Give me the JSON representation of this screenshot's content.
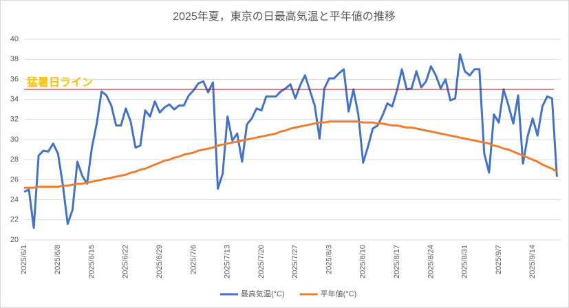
{
  "chart_data": {
    "type": "line",
    "title": "2025年夏，東京の日最高気温と平年値の推移",
    "categories": [
      "2025/6/1",
      null,
      null,
      null,
      null,
      null,
      null,
      "2025/6/8",
      null,
      null,
      null,
      null,
      null,
      null,
      "2025/6/15",
      null,
      null,
      null,
      null,
      null,
      null,
      "2025/6/22",
      null,
      null,
      null,
      null,
      null,
      null,
      "2025/6/29",
      null,
      null,
      null,
      null,
      null,
      null,
      "2025/7/6",
      null,
      null,
      null,
      null,
      null,
      null,
      "2025/7/13",
      null,
      null,
      null,
      null,
      null,
      null,
      "2025/7/20",
      null,
      null,
      null,
      null,
      null,
      null,
      "2025/7/27",
      null,
      null,
      null,
      null,
      null,
      null,
      "2025/8/3",
      null,
      null,
      null,
      null,
      null,
      null,
      "2025/8/10",
      null,
      null,
      null,
      null,
      null,
      null,
      "2025/8/17",
      null,
      null,
      null,
      null,
      null,
      null,
      "2025/8/24",
      null,
      null,
      null,
      null,
      null,
      null,
      "2025/8/31",
      null,
      null,
      null,
      null,
      null,
      null,
      "2025/9/7",
      null,
      null,
      null,
      null,
      null,
      null,
      "2025/9/14",
      null,
      null,
      null,
      null,
      null
    ],
    "series": [
      {
        "name": "最高気温(°C)",
        "color": "#4472c4",
        "values": [
          24.8,
          25.0,
          21.2,
          28.4,
          28.9,
          28.8,
          29.6,
          28.6,
          25.5,
          21.6,
          23.0,
          27.8,
          26.4,
          25.6,
          29.2,
          31.6,
          34.8,
          34.4,
          33.4,
          31.4,
          31.4,
          33.1,
          31.8,
          29.2,
          29.4,
          32.9,
          32.3,
          33.8,
          32.7,
          33.2,
          33.5,
          33.0,
          33.4,
          33.4,
          34.4,
          34.9,
          35.6,
          35.8,
          34.7,
          35.7,
          25.1,
          26.6,
          32.3,
          29.9,
          30.6,
          27.8,
          31.5,
          32.1,
          33.1,
          32.9,
          34.3,
          34.3,
          34.3,
          34.8,
          35.1,
          35.5,
          34.1,
          35.4,
          36.4,
          34.9,
          33.4,
          30.1,
          35.1,
          36.1,
          36.1,
          36.6,
          37.0,
          32.8,
          35.0,
          32.5,
          27.7,
          29.3,
          31.1,
          31.4,
          32.4,
          33.6,
          33.3,
          34.9,
          37.0,
          35.0,
          35.1,
          36.8,
          35.2,
          35.8,
          37.3,
          36.4,
          35.1,
          36.0,
          33.9,
          34.1,
          38.5,
          36.8,
          36.4,
          37.0,
          37.0,
          28.6,
          26.7,
          32.5,
          31.7,
          35.0,
          33.4,
          31.6,
          34.4,
          27.6,
          30.4,
          32.1,
          30.4,
          33.3,
          34.3,
          34.1,
          26.3
        ]
      },
      {
        "name": "平年値(°C)",
        "color": "#ed7d31",
        "values": [
          25.2,
          25.2,
          25.2,
          25.3,
          25.3,
          25.3,
          25.3,
          25.3,
          25.4,
          25.4,
          25.5,
          25.6,
          25.6,
          25.7,
          25.8,
          25.9,
          26.0,
          26.1,
          26.2,
          26.3,
          26.4,
          26.5,
          26.7,
          26.8,
          27.0,
          27.1,
          27.3,
          27.5,
          27.7,
          27.9,
          28.0,
          28.2,
          28.3,
          28.5,
          28.6,
          28.7,
          28.9,
          29.0,
          29.1,
          29.2,
          29.4,
          29.5,
          29.6,
          29.7,
          29.8,
          29.9,
          30.0,
          30.1,
          30.2,
          30.3,
          30.4,
          30.5,
          30.6,
          30.8,
          30.9,
          31.1,
          31.2,
          31.3,
          31.4,
          31.5,
          31.6,
          31.7,
          31.7,
          31.8,
          31.8,
          31.8,
          31.8,
          31.8,
          31.8,
          31.8,
          31.7,
          31.7,
          31.7,
          31.6,
          31.6,
          31.5,
          31.4,
          31.4,
          31.3,
          31.2,
          31.2,
          31.1,
          31.0,
          30.9,
          30.8,
          30.7,
          30.6,
          30.5,
          30.4,
          30.3,
          30.2,
          30.1,
          30.0,
          29.9,
          29.8,
          29.7,
          29.6,
          29.4,
          29.3,
          29.1,
          29.0,
          28.8,
          28.6,
          28.4,
          28.2,
          28.0,
          27.8,
          27.5,
          27.3,
          27.1,
          26.8
        ]
      }
    ],
    "annotation": {
      "text": "猛暑日ライン",
      "value": 35,
      "color": "#c00000",
      "text_color": "#ffc000"
    },
    "ylim": [
      20,
      40
    ],
    "yticks": [
      20,
      22,
      24,
      26,
      28,
      30,
      32,
      34,
      36,
      38,
      40
    ],
    "grid": true,
    "legend": "bottom"
  }
}
